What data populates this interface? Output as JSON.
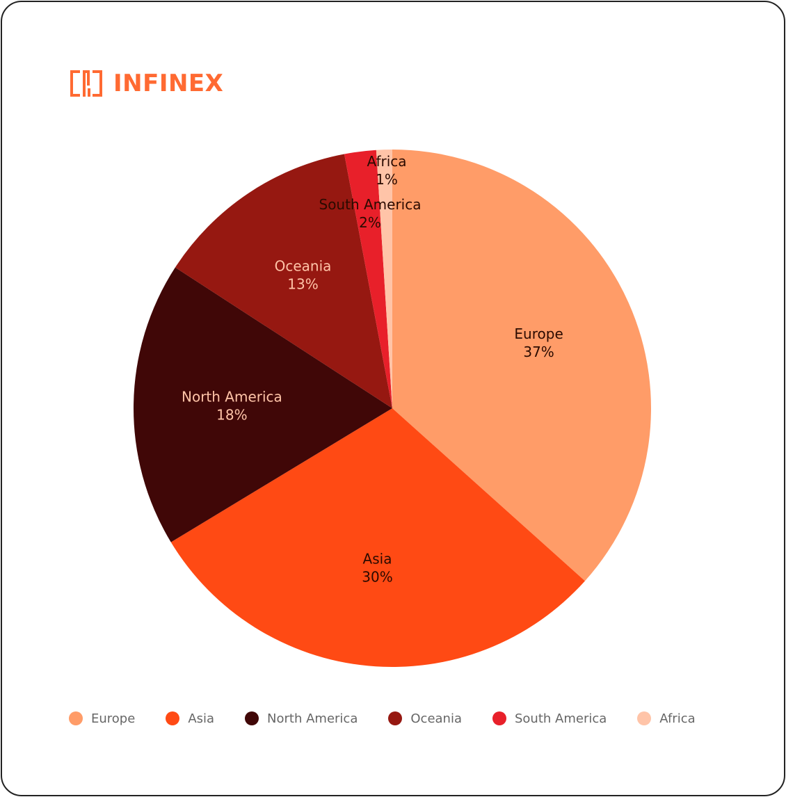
{
  "brand": {
    "name": "INFINEX",
    "color": "#FF6A32",
    "logo_icon": "infinex-logo-icon"
  },
  "card": {
    "border_color": "#222222",
    "background": "#FFFFFF"
  },
  "chart_data": {
    "type": "pie",
    "title": "",
    "categories": [
      "Europe",
      "Asia",
      "North America",
      "Oceania",
      "South America",
      "Africa"
    ],
    "values": [
      37,
      30,
      18,
      13,
      2,
      1
    ],
    "labels": [
      "37%",
      "30%",
      "18%",
      "13%",
      "2%",
      "1%"
    ],
    "colors": [
      "#FF9C68",
      "#FF4A14",
      "#400707",
      "#961811",
      "#E8202A",
      "#FFC4A8"
    ],
    "label_colors": [
      "#2A0A00",
      "#2A0A00",
      "#FFC4A8",
      "#FFC4A8",
      "#2A0A00",
      "#2A0A00"
    ],
    "start_angle_deg": 0,
    "direction": "clockwise",
    "legend_position": "bottom",
    "legend_label_color": "#666666"
  }
}
